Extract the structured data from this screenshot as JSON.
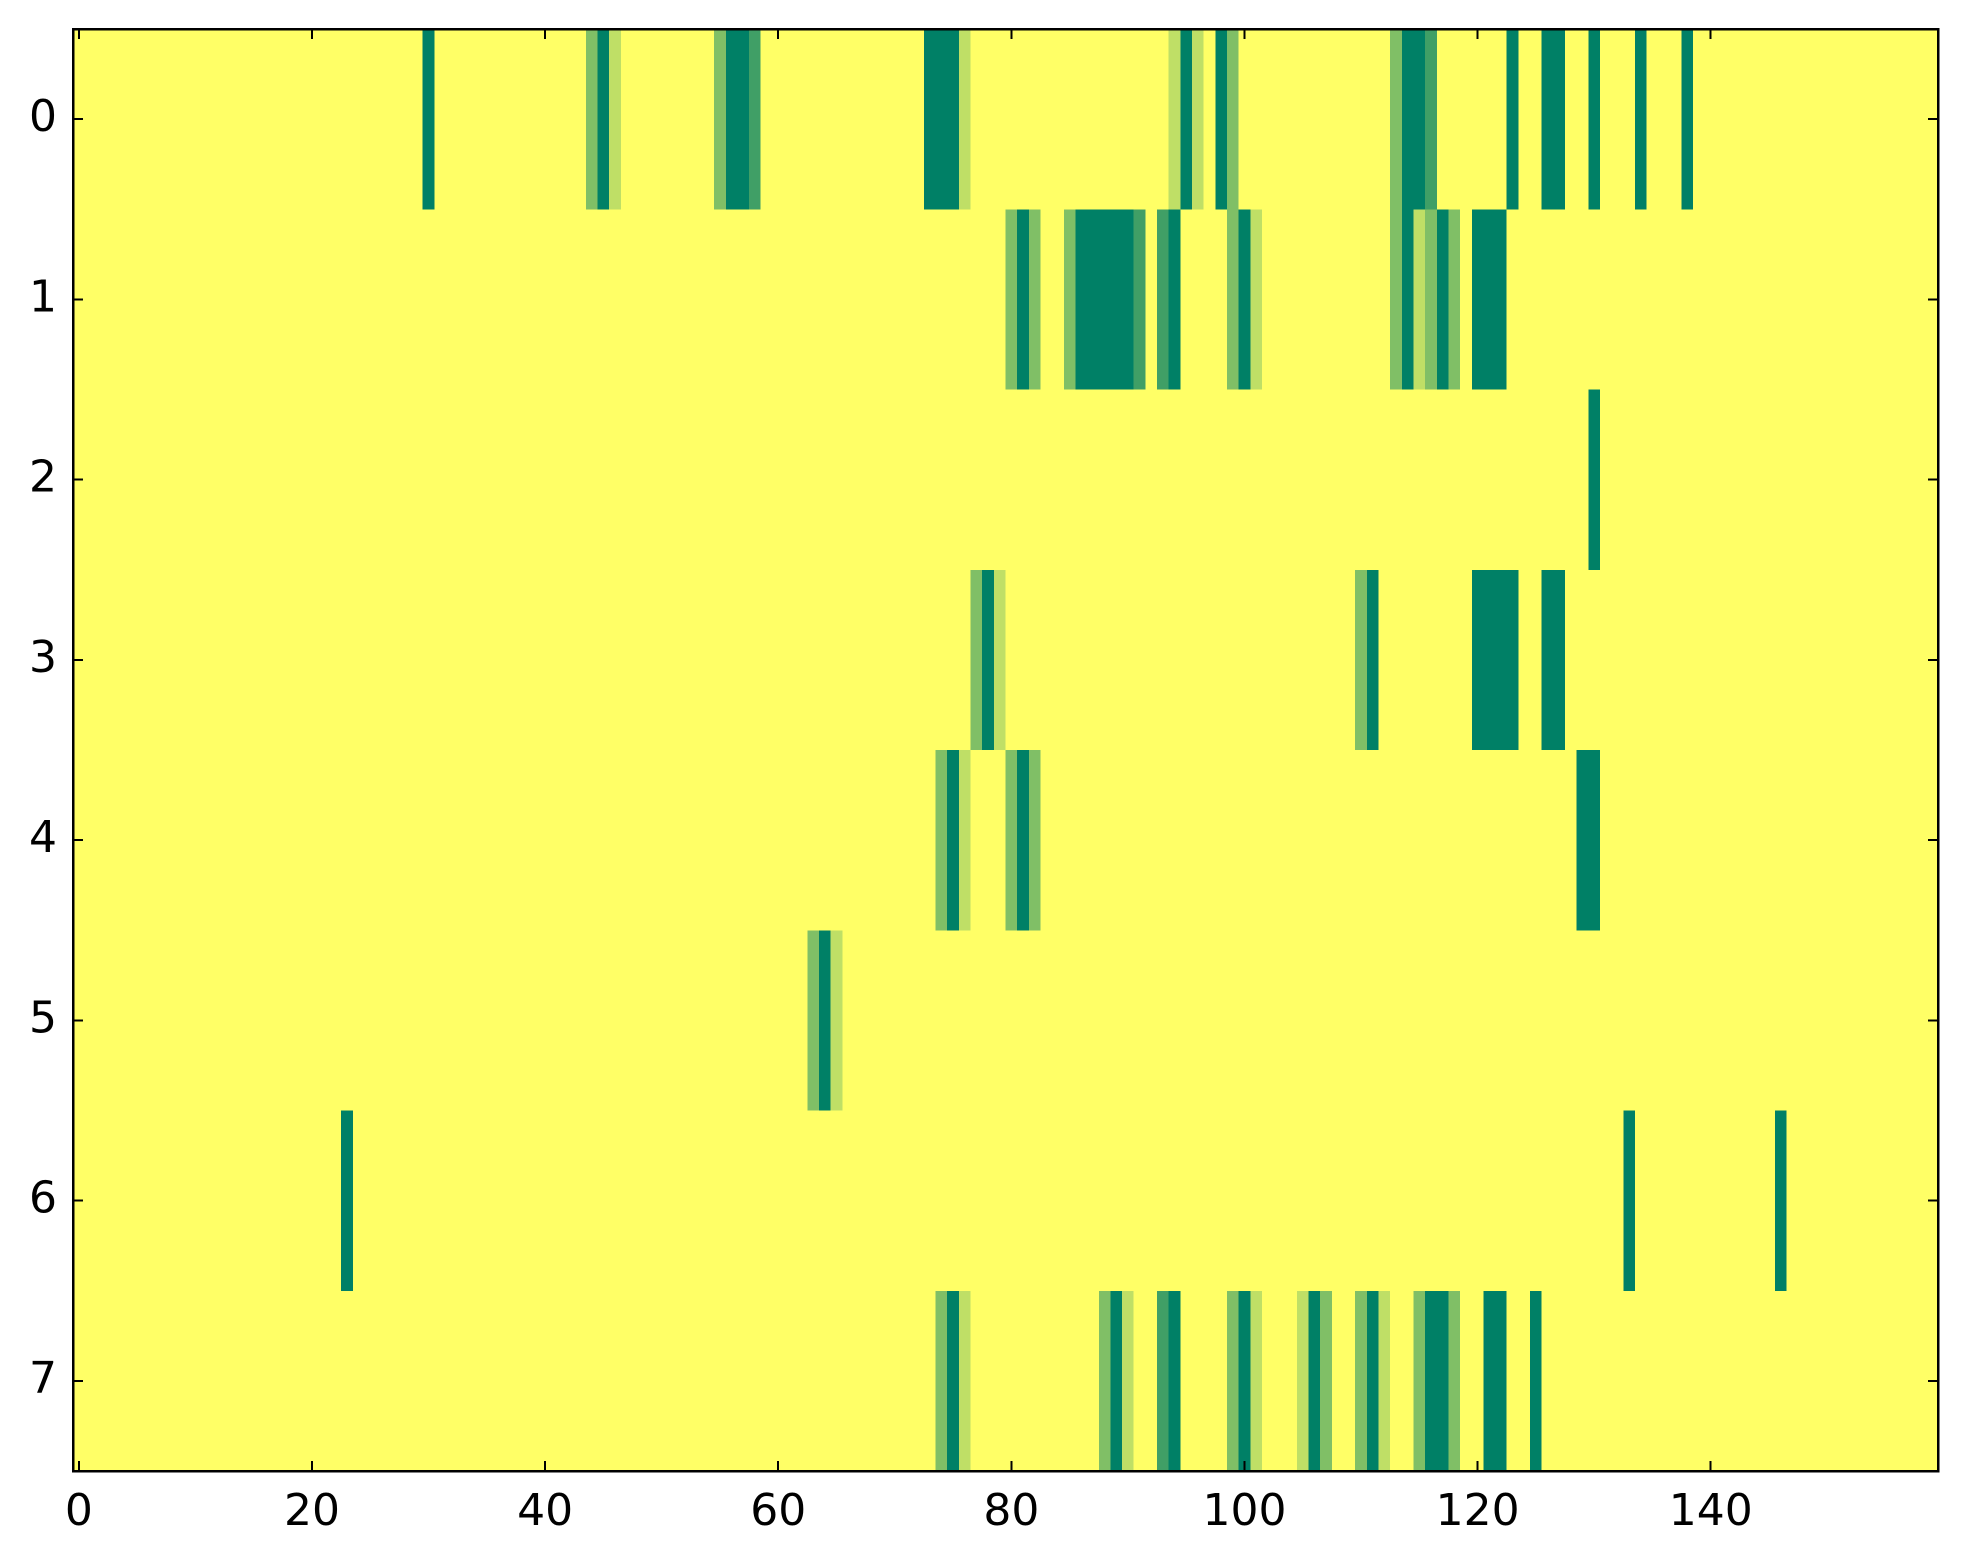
{
  "chart_data": {
    "type": "heatmap",
    "colormap": "summer_r",
    "xlim": [
      -0.5,
      159.5
    ],
    "ylim": [
      7.5,
      -0.5
    ],
    "xticks": [
      0,
      20,
      40,
      60,
      80,
      100,
      120,
      140
    ],
    "yticks": [
      0,
      1,
      2,
      3,
      4,
      5,
      6,
      7
    ],
    "z": [
      [
        0,
        0,
        0,
        0,
        0,
        0,
        0,
        0,
        0,
        0,
        0,
        0,
        0,
        0,
        0,
        0,
        0,
        0,
        0,
        0,
        0,
        0,
        0,
        0,
        0,
        0,
        0,
        0,
        0,
        0,
        1,
        0,
        0,
        0,
        0,
        0,
        0,
        0,
        0,
        0,
        0,
        0,
        0,
        0,
        0.5,
        1,
        0.25,
        0,
        0,
        0,
        0,
        0,
        0,
        0,
        0,
        0.5,
        1,
        1,
        0.75,
        0,
        0,
        0,
        0,
        0,
        0,
        0,
        0,
        0,
        0,
        0,
        0,
        0,
        0,
        1,
        1,
        1,
        0.25,
        0,
        0,
        0,
        0,
        0,
        0,
        0,
        0,
        0,
        0,
        0,
        0,
        0,
        0,
        0,
        0,
        0,
        0.25,
        1,
        0.25,
        0,
        1,
        0.5,
        0,
        0,
        0,
        0,
        0,
        0,
        0,
        0,
        0,
        0,
        0,
        0,
        0,
        0.5,
        1,
        1,
        0.75,
        0,
        0,
        0,
        0,
        0,
        0,
        1,
        0,
        0,
        1,
        1,
        0,
        0,
        1,
        0,
        0,
        0,
        1,
        0,
        0,
        0,
        1,
        0,
        0,
        0,
        0,
        0,
        0,
        0,
        0,
        0,
        0,
        0,
        0,
        0,
        0,
        0,
        0,
        0,
        0,
        0,
        0,
        0
      ],
      [
        0,
        0,
        0,
        0,
        0,
        0,
        0,
        0,
        0,
        0,
        0,
        0,
        0,
        0,
        0,
        0,
        0,
        0,
        0,
        0,
        0,
        0,
        0,
        0,
        0,
        0,
        0,
        0,
        0,
        0,
        0,
        0,
        0,
        0,
        0,
        0,
        0,
        0,
        0,
        0,
        0,
        0,
        0,
        0,
        0,
        0,
        0,
        0,
        0,
        0,
        0,
        0,
        0,
        0,
        0,
        0,
        0,
        0,
        0,
        0,
        0,
        0,
        0,
        0,
        0,
        0,
        0,
        0,
        0,
        0,
        0,
        0,
        0,
        0,
        0,
        0,
        0,
        0,
        0,
        0,
        0.5,
        1,
        0.5,
        0,
        0,
        0.5,
        1,
        1,
        1,
        1,
        1,
        0.75,
        0,
        0.75,
        1,
        0,
        0,
        0,
        0,
        0.5,
        1,
        0.25,
        0,
        0,
        0,
        0,
        0,
        0,
        0,
        0,
        0,
        0,
        0,
        0.5,
        1,
        0.25,
        0.5,
        1,
        0.5,
        0,
        1,
        1,
        1,
        0,
        0,
        0,
        0,
        0,
        0,
        0,
        0,
        0,
        0,
        0,
        0,
        0,
        0,
        0,
        0,
        0,
        0,
        0,
        0,
        0,
        0,
        0,
        0,
        0,
        0,
        0,
        0,
        0,
        0,
        0,
        0,
        0,
        0,
        0,
        0,
        0
      ],
      [
        0,
        0,
        0,
        0,
        0,
        0,
        0,
        0,
        0,
        0,
        0,
        0,
        0,
        0,
        0,
        0,
        0,
        0,
        0,
        0,
        0,
        0,
        0,
        0,
        0,
        0,
        0,
        0,
        0,
        0,
        0,
        0,
        0,
        0,
        0,
        0,
        0,
        0,
        0,
        0,
        0,
        0,
        0,
        0,
        0,
        0,
        0,
        0,
        0,
        0,
        0,
        0,
        0,
        0,
        0,
        0,
        0,
        0,
        0,
        0,
        0,
        0,
        0,
        0,
        0,
        0,
        0,
        0,
        0,
        0,
        0,
        0,
        0,
        0,
        0,
        0,
        0,
        0,
        0,
        0,
        0,
        0,
        0,
        0,
        0,
        0,
        0,
        0,
        0,
        0,
        0,
        0,
        0,
        0,
        0,
        0,
        0,
        0,
        0,
        0,
        0,
        0,
        0,
        0,
        0,
        0,
        0,
        0,
        0,
        0,
        0,
        0,
        0,
        0,
        0,
        0,
        0,
        0,
        0,
        0,
        0,
        0,
        0,
        0,
        0,
        0,
        0,
        0,
        0,
        0,
        1,
        0,
        0,
        0,
        0,
        0,
        0,
        0,
        0,
        0,
        0,
        0,
        0,
        0,
        0,
        0,
        0,
        0,
        0,
        0,
        0,
        0,
        0,
        0,
        0,
        0,
        0,
        0,
        0,
        0
      ],
      [
        0,
        0,
        0,
        0,
        0,
        0,
        0,
        0,
        0,
        0,
        0,
        0,
        0,
        0,
        0,
        0,
        0,
        0,
        0,
        0,
        0,
        0,
        0,
        0,
        0,
        0,
        0,
        0,
        0,
        0,
        0,
        0,
        0,
        0,
        0,
        0,
        0,
        0,
        0,
        0,
        0,
        0,
        0,
        0,
        0,
        0,
        0,
        0,
        0,
        0,
        0,
        0,
        0,
        0,
        0,
        0,
        0,
        0,
        0,
        0,
        0,
        0,
        0,
        0,
        0,
        0,
        0,
        0,
        0,
        0,
        0,
        0,
        0,
        0,
        0,
        0,
        0,
        0.5,
        1,
        0.25,
        0,
        0,
        0,
        0,
        0,
        0,
        0,
        0,
        0,
        0,
        0,
        0,
        0,
        0,
        0,
        0,
        0,
        0,
        0,
        0,
        0,
        0,
        0,
        0,
        0,
        0,
        0,
        0,
        0,
        0,
        0.5,
        1,
        0,
        0,
        0,
        0,
        0,
        0,
        0,
        0,
        1,
        1,
        1,
        1,
        0,
        0,
        1,
        1,
        0,
        0,
        0,
        0,
        0,
        0,
        0,
        0,
        0,
        0,
        0,
        0,
        0,
        0,
        0,
        0,
        0,
        0,
        0,
        0,
        0,
        0,
        0,
        0,
        0,
        0,
        0,
        0,
        0,
        0,
        0,
        0
      ],
      [
        0,
        0,
        0,
        0,
        0,
        0,
        0,
        0,
        0,
        0,
        0,
        0,
        0,
        0,
        0,
        0,
        0,
        0,
        0,
        0,
        0,
        0,
        0,
        0,
        0,
        0,
        0,
        0,
        0,
        0,
        0,
        0,
        0,
        0,
        0,
        0,
        0,
        0,
        0,
        0,
        0,
        0,
        0,
        0,
        0,
        0,
        0,
        0,
        0,
        0,
        0,
        0,
        0,
        0,
        0,
        0,
        0,
        0,
        0,
        0,
        0,
        0,
        0,
        0,
        0,
        0,
        0,
        0,
        0,
        0,
        0,
        0,
        0,
        0,
        0.5,
        1,
        0.25,
        0,
        0,
        0,
        0.5,
        1,
        0.5,
        0,
        0,
        0,
        0,
        0,
        0,
        0,
        0,
        0,
        0,
        0,
        0,
        0,
        0,
        0,
        0,
        0,
        0,
        0,
        0,
        0,
        0,
        0,
        0,
        0,
        0,
        0,
        0,
        0,
        0,
        0,
        0,
        0,
        0,
        0,
        0,
        0,
        0,
        0,
        0,
        0,
        0,
        0,
        0,
        0,
        0,
        1,
        1,
        0,
        0,
        0,
        0,
        0,
        0,
        0,
        0,
        0,
        0,
        0,
        0,
        0,
        0,
        0,
        0,
        0,
        0,
        0,
        0,
        0,
        0,
        0,
        0,
        0,
        0,
        0,
        0,
        0
      ],
      [
        0,
        0,
        0,
        0,
        0,
        0,
        0,
        0,
        0,
        0,
        0,
        0,
        0,
        0,
        0,
        0,
        0,
        0,
        0,
        0,
        0,
        0,
        0,
        0,
        0,
        0,
        0,
        0,
        0,
        0,
        0,
        0,
        0,
        0,
        0,
        0,
        0,
        0,
        0,
        0,
        0,
        0,
        0,
        0,
        0,
        0,
        0,
        0,
        0,
        0,
        0,
        0,
        0,
        0,
        0,
        0,
        0,
        0,
        0,
        0,
        0,
        0,
        0,
        0.5,
        1,
        0.25,
        0,
        0,
        0,
        0,
        0,
        0,
        0,
        0,
        0,
        0,
        0,
        0,
        0,
        0,
        0,
        0,
        0,
        0,
        0,
        0,
        0,
        0,
        0,
        0,
        0,
        0,
        0,
        0,
        0,
        0,
        0,
        0,
        0,
        0,
        0,
        0,
        0,
        0,
        0,
        0,
        0,
        0,
        0,
        0,
        0,
        0,
        0,
        0,
        0,
        0,
        0,
        0,
        0,
        0,
        0,
        0,
        0,
        0,
        0,
        0,
        0,
        0,
        0,
        0,
        0,
        0,
        0,
        0,
        0,
        0,
        0,
        0,
        0,
        0,
        0,
        0,
        0,
        0,
        0,
        0,
        0,
        0,
        0,
        0,
        0,
        0,
        0,
        0,
        0,
        0,
        0,
        0,
        0,
        0
      ],
      [
        0,
        0,
        0,
        0,
        0,
        0,
        0,
        0,
        0,
        0,
        0,
        0,
        0,
        0,
        0,
        0,
        0,
        0,
        0,
        0,
        0,
        0,
        0,
        1,
        0,
        0,
        0,
        0,
        0,
        0,
        0,
        0,
        0,
        0,
        0,
        0,
        0,
        0,
        0,
        0,
        0,
        0,
        0,
        0,
        0,
        0,
        0,
        0,
        0,
        0,
        0,
        0,
        0,
        0,
        0,
        0,
        0,
        0,
        0,
        0,
        0,
        0,
        0,
        0,
        0,
        0,
        0,
        0,
        0,
        0,
        0,
        0,
        0,
        0,
        0,
        0,
        0,
        0,
        0,
        0,
        0,
        0,
        0,
        0,
        0,
        0,
        0,
        0,
        0,
        0,
        0,
        0,
        0,
        0,
        0,
        0,
        0,
        0,
        0,
        0,
        0,
        0,
        0,
        0,
        0,
        0,
        0,
        0,
        0,
        0,
        0,
        0,
        0,
        0,
        0,
        0,
        0,
        0,
        0,
        0,
        0,
        0,
        0,
        0,
        0,
        0,
        0,
        0,
        0,
        0,
        0,
        0,
        0,
        1,
        0,
        0,
        0,
        0,
        0,
        0,
        0,
        0,
        0,
        0,
        0,
        0,
        1,
        0,
        0,
        0,
        0,
        0,
        0,
        0,
        0,
        0,
        0,
        0,
        0,
        0
      ],
      [
        0,
        0,
        0,
        0,
        0,
        0,
        0,
        0,
        0,
        0,
        0,
        0,
        0,
        0,
        0,
        0,
        0,
        0,
        0,
        0,
        0,
        0,
        0,
        0,
        0,
        0,
        0,
        0,
        0,
        0,
        0,
        0,
        0,
        0,
        0,
        0,
        0,
        0,
        0,
        0,
        0,
        0,
        0,
        0,
        0,
        0,
        0,
        0,
        0,
        0,
        0,
        0,
        0,
        0,
        0,
        0,
        0,
        0,
        0,
        0,
        0,
        0,
        0,
        0,
        0,
        0,
        0,
        0,
        0,
        0,
        0,
        0,
        0,
        0,
        0.5,
        1,
        0.25,
        0,
        0,
        0,
        0,
        0,
        0,
        0,
        0,
        0,
        0,
        0,
        0.5,
        1,
        0.25,
        0,
        0,
        0.75,
        1,
        0,
        0,
        0,
        0,
        0.5,
        1,
        0.25,
        0,
        0,
        0,
        0.25,
        1,
        0.5,
        0,
        0,
        0.5,
        1,
        0.25,
        0,
        0,
        0.5,
        1,
        1,
        0.5,
        0,
        0,
        1,
        1,
        0,
        0,
        1,
        0,
        0,
        0,
        0,
        0,
        0,
        0,
        0,
        0,
        0,
        0,
        0,
        0,
        0,
        0,
        0,
        0,
        0,
        0,
        0,
        0,
        0,
        0,
        0,
        0,
        0,
        0,
        0,
        0,
        0,
        0,
        0,
        0,
        0
      ]
    ]
  }
}
